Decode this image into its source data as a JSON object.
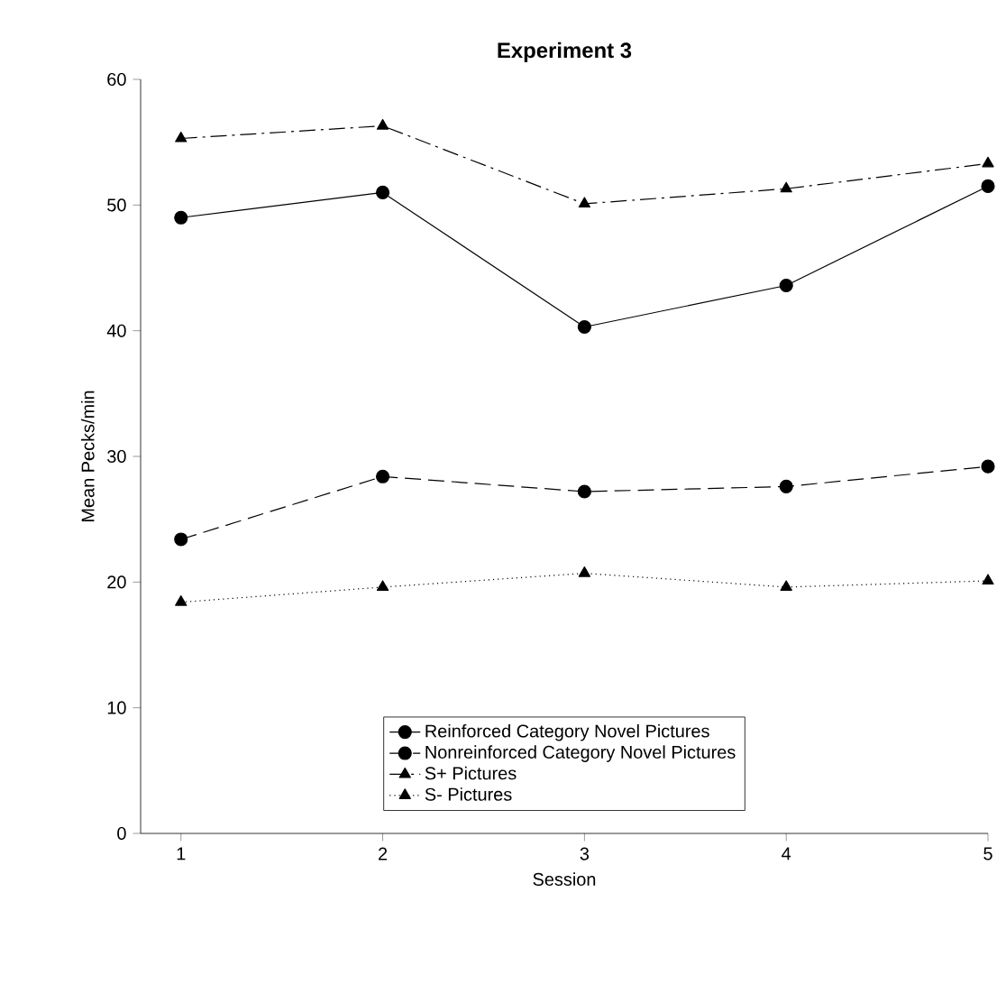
{
  "chart_data": {
    "type": "line",
    "title": "Experiment 3",
    "xlabel": "Session",
    "ylabel": "Mean Pecks/min",
    "x": [
      1,
      2,
      3,
      4,
      5
    ],
    "xlim": [
      0.8,
      5
    ],
    "xticks": [
      1,
      2,
      3,
      4,
      5
    ],
    "ylim": [
      0,
      60
    ],
    "yticks": [
      0,
      10,
      20,
      30,
      40,
      50,
      60
    ],
    "grid": false,
    "legend": "bottom",
    "series": [
      {
        "name": "Reinforced Category Novel Pictures",
        "color": "#000000",
        "marker": "circle",
        "line_style": "solid",
        "values": [
          49.0,
          51.0,
          40.3,
          43.6,
          51.5
        ]
      },
      {
        "name": "Nonreinforced Category Novel Pictures",
        "color": "#000000",
        "marker": "circle",
        "line_style": "dashed",
        "values": [
          23.4,
          28.4,
          27.2,
          27.6,
          29.2
        ]
      },
      {
        "name": "S+ Pictures",
        "color": "#000000",
        "marker": "triangle",
        "line_style": "dashdot",
        "values": [
          55.3,
          56.3,
          50.1,
          51.3,
          53.3
        ]
      },
      {
        "name": "S- Pictures",
        "color": "#000000",
        "marker": "triangle",
        "line_style": "dotted",
        "values": [
          18.4,
          19.6,
          20.7,
          19.6,
          20.1
        ]
      }
    ]
  }
}
